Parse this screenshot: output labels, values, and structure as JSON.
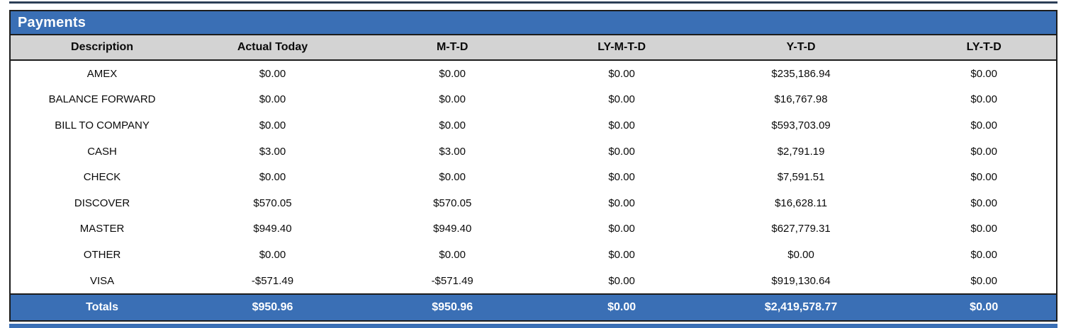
{
  "section": {
    "title": "Payments"
  },
  "table": {
    "columns": [
      "Description",
      "Actual Today",
      "M-T-D",
      "LY-M-T-D",
      "Y-T-D",
      "LY-T-D"
    ],
    "rows": [
      [
        "AMEX",
        "$0.00",
        "$0.00",
        "$0.00",
        "$235,186.94",
        "$0.00"
      ],
      [
        "BALANCE FORWARD",
        "$0.00",
        "$0.00",
        "$0.00",
        "$16,767.98",
        "$0.00"
      ],
      [
        "BILL TO COMPANY",
        "$0.00",
        "$0.00",
        "$0.00",
        "$593,703.09",
        "$0.00"
      ],
      [
        "CASH",
        "$3.00",
        "$3.00",
        "$0.00",
        "$2,791.19",
        "$0.00"
      ],
      [
        "CHECK",
        "$0.00",
        "$0.00",
        "$0.00",
        "$7,591.51",
        "$0.00"
      ],
      [
        "DISCOVER",
        "$570.05",
        "$570.05",
        "$0.00",
        "$16,628.11",
        "$0.00"
      ],
      [
        "MASTER",
        "$949.40",
        "$949.40",
        "$0.00",
        "$627,779.31",
        "$0.00"
      ],
      [
        "OTHER",
        "$0.00",
        "$0.00",
        "$0.00",
        "$0.00",
        "$0.00"
      ],
      [
        "VISA",
        "-$571.49",
        "-$571.49",
        "$0.00",
        "$919,130.64",
        "$0.00"
      ]
    ],
    "totals": [
      "Totals",
      "$950.96",
      "$950.96",
      "$0.00",
      "$2,419,578.77",
      "$0.00"
    ]
  },
  "colors": {
    "accent_blue": "#3a6fb5",
    "header_gray": "#d3d3d3",
    "border_dark": "#1c1c1c",
    "top_divider": "#2c3e56"
  }
}
